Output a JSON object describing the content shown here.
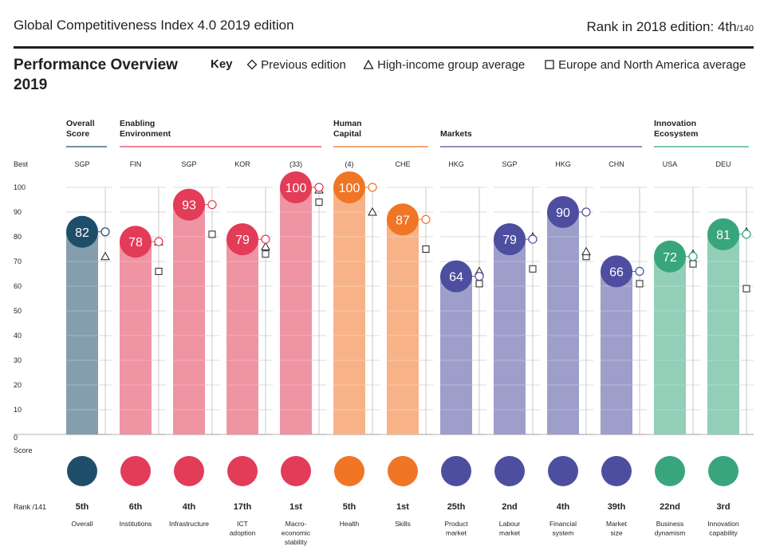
{
  "header": {
    "title": "Global Competitiveness Index 4.0 2019 edition",
    "rank_label": "Rank in 2018 edition: 4th",
    "rank_total": "/140"
  },
  "overview": {
    "title_line1": "Performance Overview",
    "title_line2": "2019"
  },
  "key": {
    "label": "Key",
    "previous": "Previous edition",
    "high_income": "High-income group average",
    "europe": "Europe and North America average"
  },
  "axis": {
    "best_label": "Best",
    "score_label": "Score",
    "rank_label": "Rank /141",
    "ticks": [
      "0",
      "10",
      "20",
      "30",
      "40",
      "50",
      "60",
      "70",
      "80",
      "90",
      "100"
    ]
  },
  "colors": {
    "overall": "#1f4e6b",
    "enabling": "#e23c58",
    "human": "#f07525",
    "markets": "#4e4ea0",
    "innovation": "#38a57d"
  },
  "chart_data": {
    "type": "bar",
    "title": "Performance Overview 2019",
    "ylim": [
      0,
      100
    ],
    "ylabel": "Score",
    "groups": [
      {
        "name": "Overall Score",
        "color_key": "overall",
        "start": 0,
        "end": 0
      },
      {
        "name": "Enabling Environment",
        "color_key": "enabling",
        "start": 1,
        "end": 4
      },
      {
        "name": "Human Capital",
        "color_key": "human",
        "start": 5,
        "end": 6
      },
      {
        "name": "Markets",
        "color_key": "markets",
        "start": 7,
        "end": 10
      },
      {
        "name": "Innovation Ecosystem",
        "color_key": "innovation",
        "start": 11,
        "end": 12
      }
    ],
    "categories": [
      {
        "label": "Overall",
        "best": "SGP",
        "score": 82,
        "rank": "5th",
        "group": 0,
        "prev": 82,
        "high_income": 72,
        "europe": null
      },
      {
        "label": "Institutions",
        "best": "FIN",
        "score": 78,
        "rank": "6th",
        "group": 1,
        "prev": 78,
        "high_income": 78,
        "europe": 66
      },
      {
        "label": "Infrastructure",
        "best": "SGP",
        "score": 93,
        "rank": "4th",
        "group": 1,
        "prev": 93,
        "high_income": null,
        "europe": 81
      },
      {
        "label": "ICT adoption",
        "best": "KOR",
        "score": 79,
        "rank": "17th",
        "group": 1,
        "prev": 79,
        "high_income": 76,
        "europe": 73
      },
      {
        "label": "Macro-economic stability",
        "best": "(33)",
        "score": 100,
        "rank": "1st",
        "group": 1,
        "prev": 100,
        "high_income": 99,
        "europe": 94
      },
      {
        "label": "Health",
        "best": "(4)",
        "score": 100,
        "rank": "5th",
        "group": 2,
        "prev": 100,
        "high_income": 90,
        "europe": null
      },
      {
        "label": "Skills",
        "best": "CHE",
        "score": 87,
        "rank": "1st",
        "group": 2,
        "prev": 87,
        "high_income": null,
        "europe": 75
      },
      {
        "label": "Product market",
        "best": "HKG",
        "score": 64,
        "rank": "25th",
        "group": 3,
        "prev": 64,
        "high_income": 66,
        "europe": 61
      },
      {
        "label": "Labour market",
        "best": "SGP",
        "score": 79,
        "rank": "2nd",
        "group": 3,
        "prev": 79,
        "high_income": 80,
        "europe": 67
      },
      {
        "label": "Financial system",
        "best": "HKG",
        "score": 90,
        "rank": "4th",
        "group": 3,
        "prev": 90,
        "high_income": 74,
        "europe": 72
      },
      {
        "label": "Market size",
        "best": "CHN",
        "score": 66,
        "rank": "39th",
        "group": 3,
        "prev": 66,
        "high_income": null,
        "europe": 61
      },
      {
        "label": "Business dynamism",
        "best": "USA",
        "score": 72,
        "rank": "22nd",
        "group": 4,
        "prev": 72,
        "high_income": 73,
        "europe": 69
      },
      {
        "label": "Innovation capability",
        "best": "DEU",
        "score": 81,
        "rank": "3rd",
        "group": 4,
        "prev": 81,
        "high_income": 82,
        "europe": 59
      }
    ]
  }
}
